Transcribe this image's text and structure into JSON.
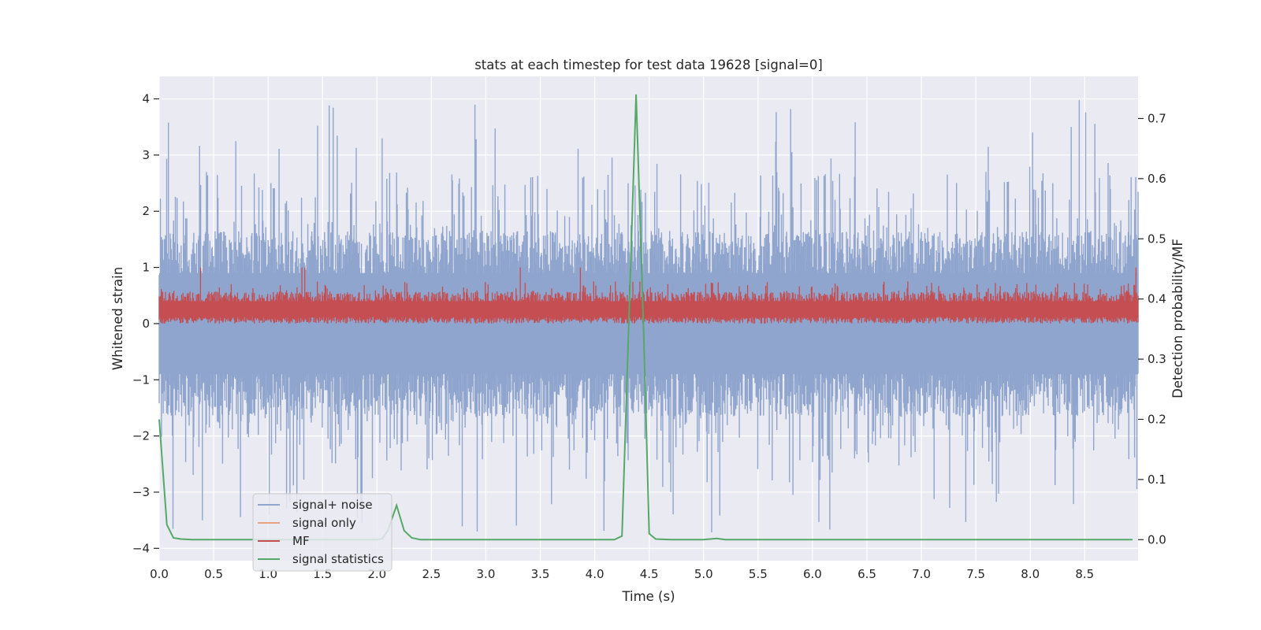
{
  "chart_data": {
    "type": "line",
    "title": "stats at each timestep for test data 19628 [signal=0]",
    "xlabel": "Time (s)",
    "ylabel": "Whitened strain",
    "y2label": "Detection probability/MF",
    "xlim": [
      0.0,
      8.99
    ],
    "ylim": [
      -4.22,
      4.4
    ],
    "y2lim": [
      -0.035,
      0.77
    ],
    "xticks": [
      0.0,
      0.5,
      1.0,
      1.5,
      2.0,
      2.5,
      3.0,
      3.5,
      4.0,
      4.5,
      5.0,
      5.5,
      6.0,
      6.5,
      7.0,
      7.5,
      8.0,
      8.5
    ],
    "xtick_labels": [
      "0.0",
      "0.5",
      "1.0",
      "1.5",
      "2.0",
      "2.5",
      "3.0",
      "3.5",
      "4.0",
      "4.5",
      "5.0",
      "5.5",
      "6.0",
      "6.5",
      "7.0",
      "7.5",
      "8.0",
      "8.5"
    ],
    "yticks": [
      -4,
      -3,
      -2,
      -1,
      0,
      1,
      2,
      3,
      4
    ],
    "ytick_labels": [
      "−4",
      "−3",
      "−2",
      "−1",
      "0",
      "1",
      "2",
      "3",
      "4"
    ],
    "y2ticks": [
      0.0,
      0.1,
      0.2,
      0.3,
      0.4,
      0.5,
      0.6,
      0.7
    ],
    "y2tick_labels": [
      "0.0",
      "0.1",
      "0.2",
      "0.3",
      "0.4",
      "0.5",
      "0.6",
      "0.7"
    ],
    "grid": true,
    "legend_position": "lower-left",
    "series": [
      {
        "name": "signal+ noise",
        "axis": "left",
        "color": "#8fa5cd",
        "noise": {
          "upper_typical": 1.7,
          "upper_peak": 4.0,
          "lower_typical": -1.7,
          "lower_peak": -3.75
        }
      },
      {
        "name": "signal only",
        "axis": "left",
        "color": "#e8a483",
        "values": []
      },
      {
        "name": "MF",
        "axis": "left",
        "color": "#c44e52",
        "noise": {
          "center": 0.25,
          "low": 0.0,
          "high_typical": 0.6,
          "high_peak": 1.0
        }
      },
      {
        "name": "signal statistics",
        "axis": "right",
        "color": "#55a868",
        "x": [
          0.0,
          0.07,
          0.13,
          0.2,
          0.3,
          0.5,
          1.0,
          1.5,
          2.0,
          2.05,
          2.1,
          2.18,
          2.25,
          2.32,
          2.4,
          2.6,
          3.0,
          3.5,
          4.0,
          4.18,
          4.25,
          4.38,
          4.45,
          4.5,
          4.56,
          4.7,
          5.0,
          5.12,
          5.2,
          6.0,
          7.0,
          8.0,
          8.94
        ],
        "y": [
          0.2,
          0.025,
          0.003,
          0.001,
          0.0,
          0.0,
          0.0,
          0.0,
          0.0,
          0.002,
          0.015,
          0.057,
          0.015,
          0.003,
          0.0,
          0.0,
          0.0,
          0.0,
          0.0,
          0.0,
          0.006,
          0.74,
          0.34,
          0.01,
          0.001,
          0.0,
          0.0,
          0.002,
          0.0,
          0.0,
          0.0,
          0.0,
          0.0
        ]
      }
    ]
  }
}
